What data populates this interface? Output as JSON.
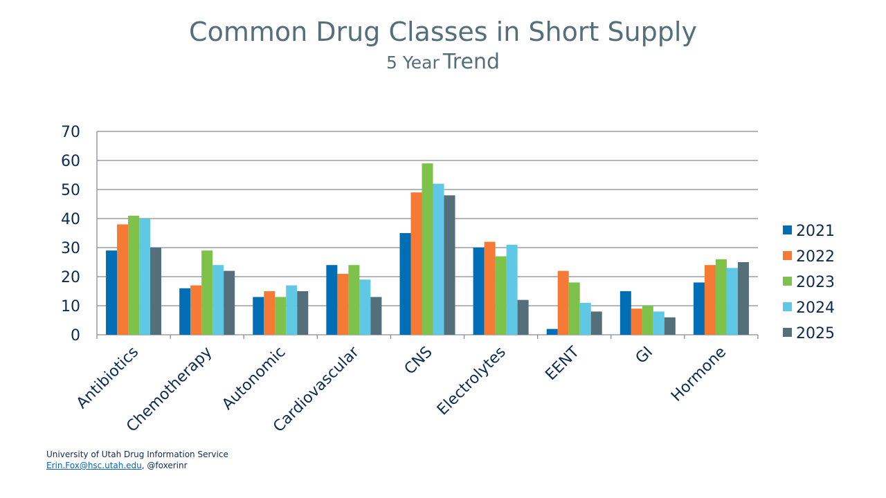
{
  "chart_data": {
    "type": "bar",
    "title": "Common Drug Classes in Short Supply",
    "subtitle_parts": [
      "5 Year",
      "Trend"
    ],
    "categories": [
      "Antibiotics",
      "Chemotherapy",
      "Autonomic",
      "Cardiovascular",
      "CNS",
      "Electrolytes",
      "EENT",
      "GI",
      "Hormone"
    ],
    "series": [
      {
        "name": "2021",
        "color": "#006eb5",
        "values": [
          29,
          16,
          13,
          24,
          35,
          30,
          2,
          15,
          18
        ]
      },
      {
        "name": "2022",
        "color": "#f47a35",
        "values": [
          38,
          17,
          15,
          21,
          49,
          32,
          22,
          9,
          24
        ]
      },
      {
        "name": "2023",
        "color": "#7fc24b",
        "values": [
          41,
          29,
          13,
          24,
          59,
          27,
          18,
          10,
          26
        ]
      },
      {
        "name": "2024",
        "color": "#5ec8e5",
        "values": [
          40,
          24,
          17,
          19,
          52,
          31,
          11,
          8,
          23
        ]
      },
      {
        "name": "2025",
        "color": "#546e7a",
        "values": [
          30,
          22,
          15,
          13,
          48,
          12,
          8,
          6,
          25
        ]
      }
    ],
    "ylim": [
      0,
      70
    ],
    "yticks": [
      "0",
      "10",
      "20",
      "30",
      "40",
      "50",
      "60",
      "70"
    ],
    "grid": true,
    "legend": "right"
  },
  "footer": {
    "line1": "University of Utah Drug Information Service",
    "email": "Erin.Fox@hsc.utah.edu",
    "handle": ", @foxerinr"
  }
}
